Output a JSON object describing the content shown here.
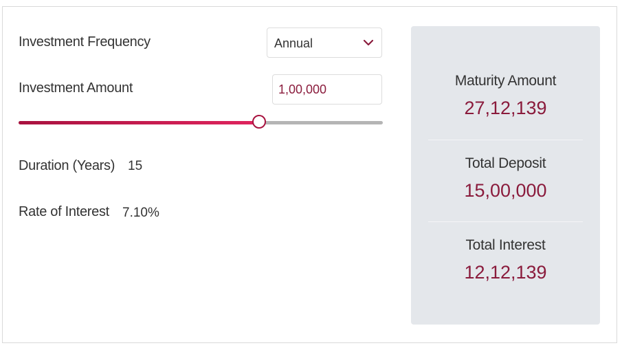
{
  "form": {
    "frequency_label": "Investment Frequency",
    "frequency_value": "Annual",
    "amount_label": "Investment Amount",
    "amount_value": "1,00,000",
    "slider_fraction": 0.66,
    "duration_label": "Duration (Years)",
    "duration_value": "15",
    "rate_label": "Rate of Interest",
    "rate_value": "7.10%"
  },
  "results": {
    "maturity_label": "Maturity Amount",
    "maturity_value": "27,12,139",
    "deposit_label": "Total Deposit",
    "deposit_value": "15,00,000",
    "interest_label": "Total Interest",
    "interest_value": "12,12,139"
  },
  "colors": {
    "accent": "#a8123f",
    "value_text": "#8a1b3c",
    "panel_bg": "#e4e7eb"
  },
  "icons": {
    "dropdown": "chevron-down-icon"
  }
}
